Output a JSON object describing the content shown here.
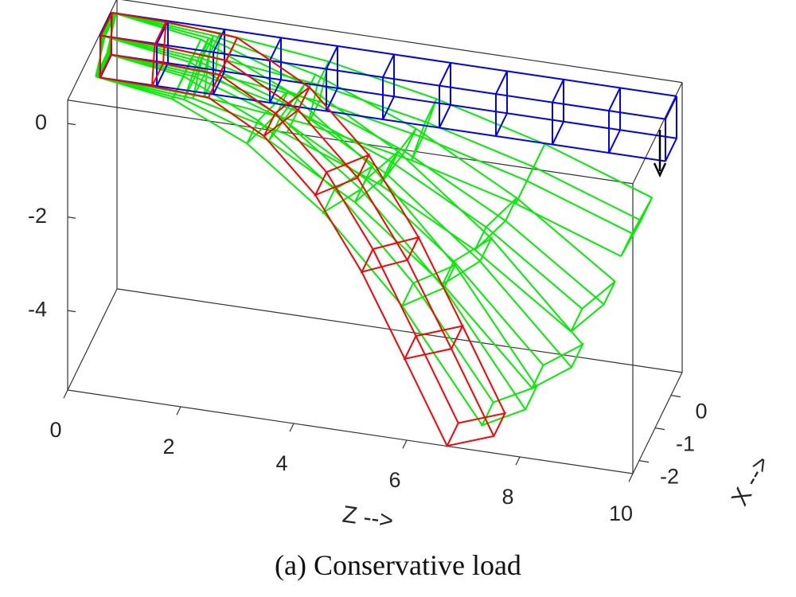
{
  "chart_data": {
    "type": "beam3d",
    "caption": "(a) Conservative load",
    "zlabel": "Z -->",
    "xlabel": "X -->",
    "zlim": [
      0,
      10
    ],
    "zticks": [
      0,
      2,
      4,
      6,
      8,
      10
    ],
    "xlim": [
      -2.4,
      0.7
    ],
    "xticks": [
      0,
      -1,
      -2
    ],
    "ylim": [
      -5.7,
      0.5
    ],
    "yticks": [
      0,
      -2,
      -4
    ],
    "series": [
      {
        "color": "#00ee00",
        "z": [
          0,
          1.88,
          3.76,
          5.63,
          7.51,
          9.39
        ],
        "y": [
          0,
          -0.09,
          -0.35,
          -0.8,
          -1.41,
          -2.21
        ]
      },
      {
        "color": "#00ee00",
        "z": [
          0,
          1.72,
          3.45,
          5.17,
          6.9,
          8.62
        ],
        "y": [
          0,
          -0.16,
          -0.65,
          -1.46,
          -2.59,
          -4.05
        ]
      },
      {
        "color": "#00ee00",
        "z": [
          0,
          1.6,
          3.2,
          4.79,
          6.39,
          7.99
        ],
        "y": [
          0,
          -0.22,
          -0.87,
          -1.96,
          -3.48,
          -5.44
        ]
      },
      {
        "color": "#00ee00",
        "z": [
          0,
          1.43,
          2.86,
          4.28,
          5.71,
          7.14
        ],
        "y": [
          0,
          -0.26,
          -1.03,
          -2.32,
          -4.12,
          -6.44
        ]
      },
      {
        "color": "#0000ff",
        "z": [
          0,
          1,
          2,
          3,
          4,
          5,
          6,
          7,
          8,
          9,
          10
        ],
        "y": [
          0,
          0,
          0,
          0,
          0,
          0,
          0,
          0,
          0,
          0,
          0
        ]
      },
      {
        "color": "#ff0000",
        "z": [
          0,
          0.94,
          2.07,
          3.2,
          4.18,
          5.03,
          5.8,
          6.55
        ],
        "y": [
          0,
          -0.02,
          -0.11,
          -0.85,
          -2.03,
          -3.58,
          -5.32,
          -7.05
        ]
      }
    ]
  }
}
